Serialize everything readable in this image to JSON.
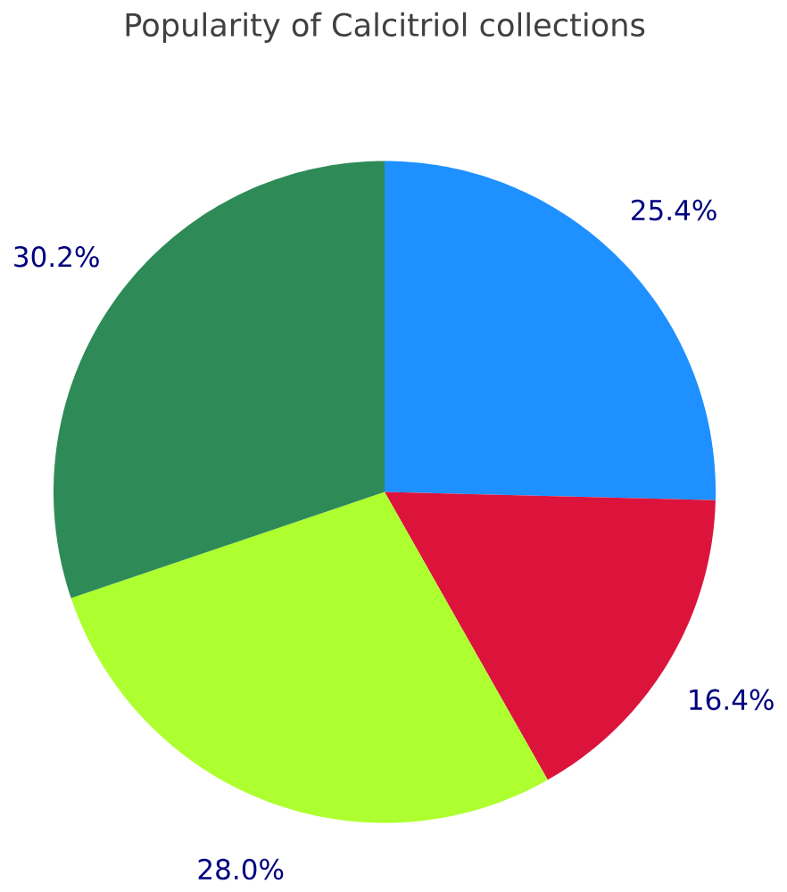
{
  "chart_data": {
    "type": "pie",
    "title": "Popularity of Calcitriol collections",
    "categories": [
      null,
      null,
      null,
      null
    ],
    "values": [
      25.4,
      16.4,
      28.0,
      30.2
    ],
    "colors": [
      "#1e90ff",
      "#dc143c",
      "#adff2f",
      "#2e8b57"
    ],
    "value_labels": [
      "25.4%",
      "16.4%",
      "28.0%",
      "30.2%"
    ]
  }
}
